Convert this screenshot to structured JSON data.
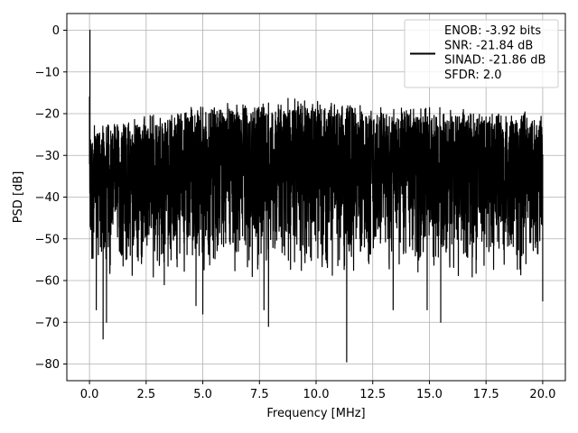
{
  "chart_data": {
    "type": "line",
    "xlabel": "Frequency [MHz]",
    "ylabel": "PSD [dB]",
    "xlim": [
      -1.0,
      21.0
    ],
    "ylim": [
      -84,
      4
    ],
    "x_ticks": [
      0.0,
      2.5,
      5.0,
      7.5,
      10.0,
      12.5,
      15.0,
      17.5,
      20.0
    ],
    "x_tick_labels": [
      "0.0",
      "2.5",
      "5.0",
      "7.5",
      "10.0",
      "12.5",
      "15.0",
      "17.5",
      "20.0"
    ],
    "y_ticks": [
      0,
      -10,
      -20,
      -30,
      -40,
      -50,
      -60,
      -70,
      -80
    ],
    "y_tick_labels": [
      "0",
      "−10",
      "−20",
      "−30",
      "−40",
      "−50",
      "−60",
      "−70",
      "−80"
    ],
    "grid": true,
    "legend_position": "top-right",
    "legend_lines": [
      "ENOB: -3.92 bits",
      "SNR: -21.84 dB",
      "SINAD: -21.86 dB",
      "SFDR: 2.0"
    ],
    "series": [
      {
        "color": "#000000",
        "description_points": [
          {
            "x": 0.0,
            "y": -16
          },
          {
            "x": 0.02,
            "y": 0
          },
          {
            "x": 0.05,
            "y": -45
          },
          {
            "x": 0.3,
            "y": -67
          },
          {
            "x": 0.6,
            "y": -74
          },
          {
            "x": 0.75,
            "y": -70
          },
          {
            "x": 3.3,
            "y": -61
          },
          {
            "x": 4.7,
            "y": -66
          },
          {
            "x": 5.0,
            "y": -68
          },
          {
            "x": 7.7,
            "y": -67
          },
          {
            "x": 7.9,
            "y": -71
          },
          {
            "x": 11.35,
            "y": -79.5
          },
          {
            "x": 13.4,
            "y": -67
          },
          {
            "x": 14.9,
            "y": -67
          },
          {
            "x": 15.5,
            "y": -70
          },
          {
            "x": 20.0,
            "y": -65
          }
        ],
        "upper_envelope": [
          {
            "x": 0.0,
            "y": -24
          },
          {
            "x": 2.0,
            "y": -22
          },
          {
            "x": 5.0,
            "y": -19
          },
          {
            "x": 9.5,
            "y": -17.5
          },
          {
            "x": 12.0,
            "y": -19
          },
          {
            "x": 17.0,
            "y": -20
          },
          {
            "x": 20.0,
            "y": -21
          }
        ],
        "lower_envelope_typical": -58
      }
    ]
  }
}
